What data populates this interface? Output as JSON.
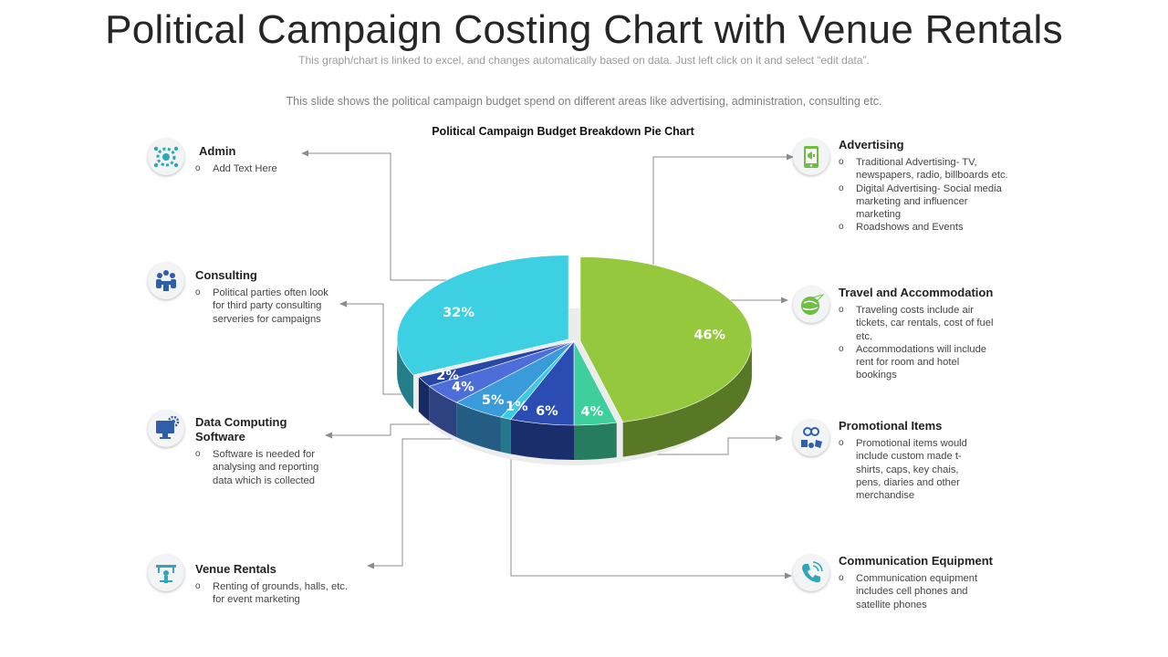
{
  "header": {
    "title": "Political Campaign Costing Chart with Venue Rentals",
    "linked_note": "This graph/chart is linked to excel, and changes automatically based on data. Just left click on it and select “edit data”.",
    "description": "This slide shows the political campaign budget spend on different  areas like advertising,  administration, consulting etc."
  },
  "chart_data": {
    "type": "pie",
    "title": "Political Campaign Budget Breakdown Pie Chart",
    "slices": [
      {
        "label": "Advertising",
        "value": 46,
        "display": "46%",
        "color": "#95C83D"
      },
      {
        "label": "Travel and Accommodation",
        "value": 4,
        "display": "4%",
        "color": "#3ECF9C"
      },
      {
        "label": "Promotional Items",
        "value": 6,
        "display": "6%",
        "color": "#2B4DB3"
      },
      {
        "label": "Communication Equipment",
        "value": 1,
        "display": "1%",
        "color": "#3BC9E6"
      },
      {
        "label": "Venue Rentals",
        "value": 5,
        "display": "5%",
        "color": "#3A9BDB"
      },
      {
        "label": "Data Computing Software",
        "value": 4,
        "display": "4%",
        "color": "#4D6ED8"
      },
      {
        "label": "Consulting",
        "value": 2,
        "display": "2%",
        "color": "#2746A6"
      },
      {
        "label": "Admin",
        "value": 32,
        "display": "32%",
        "color": "#3CD0E2"
      }
    ]
  },
  "categories": {
    "admin": {
      "title": "Admin",
      "icon": "gear-people-icon",
      "bullets": [
        "Add Text Here"
      ]
    },
    "consulting": {
      "title": "Consulting",
      "icon": "meeting-icon",
      "bullets": [
        "Political parties often look",
        "for third party consulting",
        "serveries for campaigns"
      ]
    },
    "data_software": {
      "title_line1": "Data Computing",
      "title_line2": "Software",
      "icon": "monitor-gear-icon",
      "bullets": [
        "Software is needed for",
        "analysing and reporting",
        "data which is collected"
      ]
    },
    "venue": {
      "title": "Venue Rentals",
      "icon": "venue-icon",
      "bullets": [
        "Renting of grounds, halls, etc.",
        "for event marketing"
      ]
    },
    "advertising": {
      "title": "Advertising",
      "icon": "phone-megaphone-icon",
      "bullets": [
        [
          "Traditional Advertising- TV,",
          "newspapers, radio, billboards etc."
        ],
        [
          "Digital Advertising- Social media",
          "marketing and influencer",
          "marketing"
        ],
        [
          "Roadshows and Events"
        ]
      ]
    },
    "travel": {
      "title": "Travel and Accommodation",
      "icon": "globe-plane-icon",
      "bullets": [
        [
          "Traveling costs include air",
          "tickets, car rentals, cost of fuel",
          "etc."
        ],
        [
          "Accommodations will include",
          "rent for room and hotel",
          "bookings"
        ]
      ]
    },
    "promotional": {
      "title": "Promotional Items",
      "icon": "promo-items-icon",
      "bullets": [
        "Promotional items would",
        "include custom made t-",
        "shirts, caps, key chais,",
        "pens, diaries and other",
        "merchandise"
      ]
    },
    "communication": {
      "title": "Communication Equipment",
      "icon": "phone-icon",
      "bullets": [
        "Communication equipment",
        "includes cell phones and",
        "satellite phones"
      ]
    }
  },
  "colors": {
    "connector": "#8c8c8c",
    "icon_green": "#6FBE44",
    "icon_blue": "#2E5FA8",
    "icon_teal": "#2FA7B8"
  }
}
